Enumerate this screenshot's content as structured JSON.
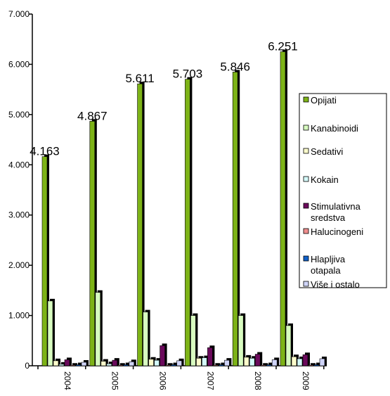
{
  "chart_data": {
    "type": "bar",
    "title": "",
    "xlabel": "",
    "ylabel": "",
    "ylim": [
      0,
      7000
    ],
    "yticks": [
      "0",
      "1.000",
      "2.000",
      "3.000",
      "4.000",
      "5.000",
      "6.000",
      "7.000"
    ],
    "ytick_values": [
      0,
      1000,
      2000,
      3000,
      4000,
      5000,
      6000,
      7000
    ],
    "categories": [
      "2004",
      "2005",
      "2006",
      "2007",
      "2008",
      "2009"
    ],
    "legend_position": "right",
    "grid": false,
    "series": [
      {
        "name": "Opijati",
        "color": "#7db317",
        "values": [
          4163,
          4867,
          5611,
          5703,
          5846,
          6251
        ],
        "labels": [
          "4.163",
          "4.867",
          "5.611",
          "5.703",
          "5.846",
          "6.251"
        ]
      },
      {
        "name": "Kanabinoidi",
        "color": "#d8fcc0",
        "values": [
          1290,
          1460,
          1070,
          1000,
          1000,
          800
        ]
      },
      {
        "name": "Sedativi",
        "color": "#fdfdcc",
        "values": [
          100,
          90,
          130,
          150,
          170,
          180
        ]
      },
      {
        "name": "Kokain",
        "color": "#d4fafa",
        "values": [
          30,
          40,
          110,
          160,
          150,
          140
        ]
      },
      {
        "name": "Stimulativna sredstva",
        "color": "#6b0a5c",
        "values": [
          120,
          110,
          400,
          360,
          230,
          220
        ]
      },
      {
        "name": "Halucinogeni",
        "color": "#f08e8e",
        "values": [
          10,
          10,
          10,
          10,
          10,
          10
        ]
      },
      {
        "name": "Hlapljiva otapala",
        "color": "#1060c8",
        "values": [
          20,
          20,
          20,
          20,
          20,
          20
        ]
      },
      {
        "name": "Više i ostalo",
        "color": "#cfd4f8",
        "values": [
          70,
          80,
          100,
          110,
          120,
          140
        ]
      }
    ],
    "legend_lines": [
      [
        "Opijati"
      ],
      [
        "Kanabinoidi"
      ],
      [
        "Sedativi"
      ],
      [
        "Kokain"
      ],
      [
        "Stimulativna",
        "sredstva"
      ],
      [
        "Halucinogeni"
      ],
      [
        "Hlapljiva",
        "otapala"
      ],
      [
        "Više i ostalo"
      ]
    ]
  }
}
